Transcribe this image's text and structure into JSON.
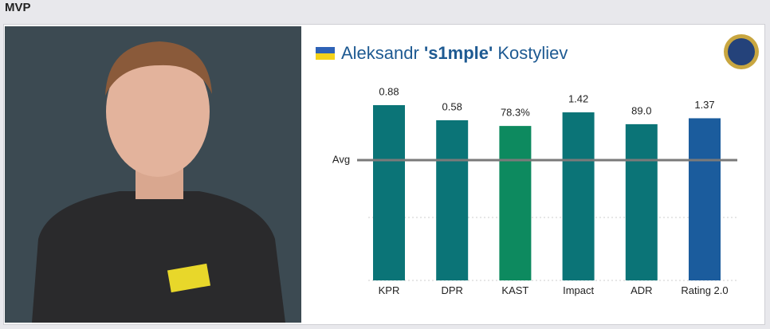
{
  "header": {
    "title": "MVP"
  },
  "player": {
    "first": "Aleksandr",
    "nick": "'s1mple'",
    "last": "Kostyliev"
  },
  "chart_data": {
    "type": "bar",
    "reference_label": "Avg",
    "stats": [
      {
        "category": "KPR",
        "value": 0.88,
        "color": "#0b7477",
        "ylim": [
          0,
          1.04
        ]
      },
      {
        "category": "DPR",
        "value": 0.58,
        "color": "#0b7477",
        "ylim": [
          0,
          0.75
        ]
      },
      {
        "category": "KAST",
        "value": 78.3,
        "value_label": "78.3%",
        "color": "#0d8a5f",
        "ylim": [
          0,
          105
        ]
      },
      {
        "category": "Impact",
        "value": 1.42,
        "color": "#0b7477",
        "ylim": [
          0,
          1.75
        ]
      },
      {
        "category": "ADR",
        "value": 89.0,
        "value_label": "89.0",
        "color": "#0b7477",
        "ylim": [
          0,
          118
        ]
      },
      {
        "category": "Rating 2.0",
        "value": 1.37,
        "color": "#1b5c9d",
        "ylim": [
          0,
          1.75
        ]
      }
    ]
  }
}
